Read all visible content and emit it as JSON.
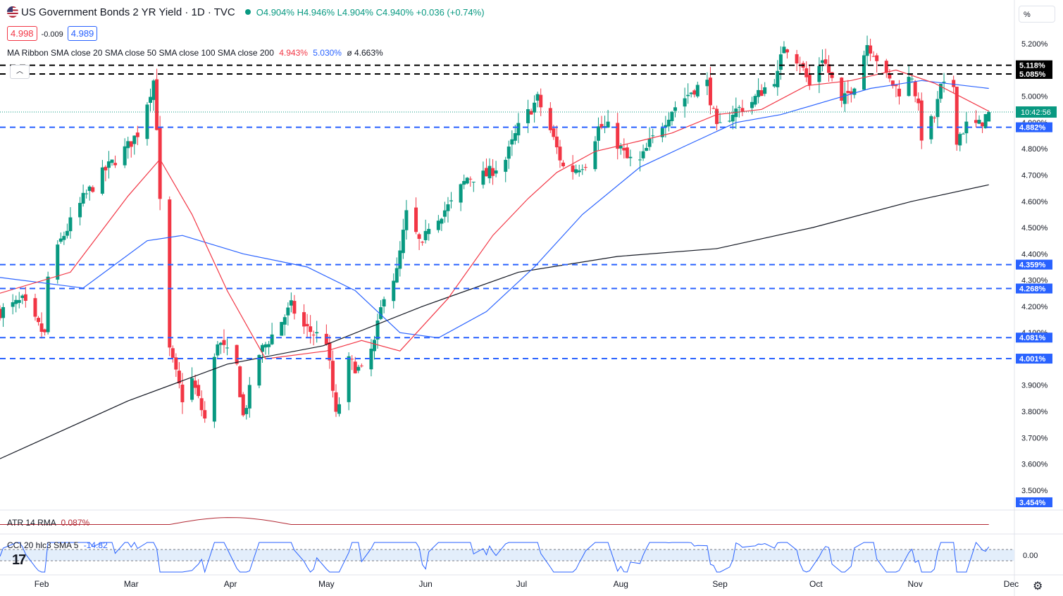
{
  "header": {
    "title": "US Government Bonds 2 YR Yield · 1D · TVC",
    "ohlc_text": "O4.904% H4.946% L4.904% C4.940% +0.036 (+0.74%)",
    "bid": "4.998",
    "spread": "-0.009",
    "ask": "4.989",
    "ma_label": "MA Ribbon SMA close 20 SMA close 50 SMA close 100 SMA close 200",
    "ma_val1": "4.943%",
    "ma_val2": "5.030%",
    "ma_val3": "ø 4.663%",
    "atr_label": "ATR 14 RMA",
    "atr_value": "0.087%",
    "cci_label": "CCI 20 hlc3 SMA 5",
    "cci_value": "-14.82",
    "cci_zero": "0.00",
    "pct_button": "%",
    "countdown": "10:42:56",
    "logo": "17"
  },
  "colors": {
    "up": "#089981",
    "down": "#f23645",
    "sma20": "#f23645",
    "sma50": "#2962ff",
    "sma200": "#131722",
    "support": "#2962ff",
    "resistance": "#000000"
  },
  "chart_data": {
    "type": "candlestick",
    "title": "US Government Bonds 2 YR Yield · 1D · TVC",
    "yaxis_ticks": [
      "5.200%",
      "5.100%",
      "5.000%",
      "4.900%",
      "4.800%",
      "4.700%",
      "4.600%",
      "4.500%",
      "4.400%",
      "4.300%",
      "4.200%",
      "4.100%",
      "4.000%",
      "3.900%",
      "3.800%",
      "3.700%",
      "3.600%",
      "3.500%"
    ],
    "ylim": [
      3.47,
      5.27
    ],
    "xaxis_ticks": [
      "Feb",
      "Mar",
      "Apr",
      "May",
      "Jun",
      "Jul",
      "Aug",
      "Sep",
      "Oct",
      "Nov",
      "Dec"
    ],
    "x_range": [
      "2023-01-19",
      "2023-12-02"
    ],
    "last_close": 4.94,
    "horizontal_levels": [
      {
        "label": "5.118%",
        "value": 5.118,
        "color": "#000000",
        "style": "dashed"
      },
      {
        "label": "5.085%",
        "value": 5.085,
        "color": "#000000",
        "style": "dashed"
      },
      {
        "label": "4.882%",
        "value": 4.882,
        "color": "#2962ff",
        "style": "dashed"
      },
      {
        "label": "4.359%",
        "value": 4.359,
        "color": "#2962ff",
        "style": "dashed"
      },
      {
        "label": "4.268%",
        "value": 4.268,
        "color": "#2962ff",
        "style": "dashed"
      },
      {
        "label": "4.081%",
        "value": 4.081,
        "color": "#2962ff",
        "style": "dashed"
      },
      {
        "label": "4.001%",
        "value": 4.001,
        "color": "#2962ff",
        "style": "dashed"
      },
      {
        "label": "3.454%",
        "value": 3.454,
        "color": "#2962ff",
        "style": "label"
      }
    ],
    "anchors": [
      [
        "2023-01-19",
        4.18
      ],
      [
        "2023-01-26",
        4.22
      ],
      [
        "2023-01-30",
        4.14
      ],
      [
        "2023-02-02",
        4.09
      ],
      [
        "2023-02-03",
        4.31
      ],
      [
        "2023-02-07",
        4.45
      ],
      [
        "2023-02-14",
        4.61
      ],
      [
        "2023-02-21",
        4.72
      ],
      [
        "2023-02-28",
        4.81
      ],
      [
        "2023-03-03",
        4.86
      ],
      [
        "2023-03-08",
        5.06
      ],
      [
        "2023-03-09",
        4.89
      ],
      [
        "2023-03-10",
        4.59
      ],
      [
        "2023-03-13",
        4.03
      ],
      [
        "2023-03-17",
        3.85
      ],
      [
        "2023-03-20",
        3.92
      ],
      [
        "2023-03-24",
        3.77
      ],
      [
        "2023-03-28",
        4.07
      ],
      [
        "2023-04-03",
        3.97
      ],
      [
        "2023-04-05",
        3.78
      ],
      [
        "2023-04-10",
        4.02
      ],
      [
        "2023-04-14",
        4.09
      ],
      [
        "2023-04-20",
        4.2
      ],
      [
        "2023-04-24",
        4.12
      ],
      [
        "2023-05-01",
        4.07
      ],
      [
        "2023-05-04",
        3.78
      ],
      [
        "2023-05-08",
        3.99
      ],
      [
        "2023-05-12",
        3.95
      ],
      [
        "2023-05-16",
        4.06
      ],
      [
        "2023-05-19",
        4.25
      ],
      [
        "2023-05-23",
        4.33
      ],
      [
        "2023-05-26",
        4.55
      ],
      [
        "2023-05-31",
        4.42
      ],
      [
        "2023-06-02",
        4.51
      ],
      [
        "2023-06-09",
        4.59
      ],
      [
        "2023-06-14",
        4.69
      ],
      [
        "2023-06-20",
        4.7
      ],
      [
        "2023-06-26",
        4.76
      ],
      [
        "2023-06-30",
        4.88
      ],
      [
        "2023-07-06",
        4.99
      ],
      [
        "2023-07-10",
        4.87
      ],
      [
        "2023-07-14",
        4.73
      ],
      [
        "2023-07-17",
        4.72
      ],
      [
        "2023-07-21",
        4.75
      ],
      [
        "2023-07-25",
        4.88
      ],
      [
        "2023-07-28",
        4.88
      ],
      [
        "2023-08-03",
        4.76
      ],
      [
        "2023-08-07",
        4.75
      ],
      [
        "2023-08-10",
        4.82
      ],
      [
        "2023-08-17",
        4.95
      ],
      [
        "2023-08-24",
        5.03
      ],
      [
        "2023-08-28",
        5.05
      ],
      [
        "2023-08-31",
        4.87
      ],
      [
        "2023-09-05",
        4.94
      ],
      [
        "2023-09-11",
        4.98
      ],
      [
        "2023-09-14",
        5.02
      ],
      [
        "2023-09-19",
        5.08
      ],
      [
        "2023-09-21",
        5.2
      ],
      [
        "2023-09-26",
        5.13
      ],
      [
        "2023-09-29",
        5.04
      ],
      [
        "2023-10-03",
        5.15
      ],
      [
        "2023-10-09",
        4.97
      ],
      [
        "2023-10-13",
        5.05
      ],
      [
        "2023-10-17",
        5.2
      ],
      [
        "2023-10-19",
        5.17
      ],
      [
        "2023-10-23",
        5.07
      ],
      [
        "2023-10-27",
        5.02
      ],
      [
        "2023-10-31",
        5.08
      ],
      [
        "2023-11-02",
        4.95
      ],
      [
        "2023-11-03",
        4.85
      ],
      [
        "2023-11-07",
        4.92
      ],
      [
        "2023-11-09",
        5.03
      ],
      [
        "2023-11-13",
        5.04
      ],
      [
        "2023-11-14",
        4.84
      ],
      [
        "2023-11-17",
        4.89
      ],
      [
        "2023-11-21",
        4.89
      ],
      [
        "2023-11-24",
        4.94
      ]
    ],
    "moving_averages": {
      "sma20": [
        [
          "2023-01-19",
          4.25
        ],
        [
          "2023-02-10",
          4.33
        ],
        [
          "2023-02-28",
          4.62
        ],
        [
          "2023-03-10",
          4.76
        ],
        [
          "2023-03-20",
          4.55
        ],
        [
          "2023-03-31",
          4.26
        ],
        [
          "2023-04-12",
          4.0
        ],
        [
          "2023-05-01",
          4.03
        ],
        [
          "2023-05-12",
          4.07
        ],
        [
          "2023-05-24",
          4.03
        ],
        [
          "2023-06-08",
          4.23
        ],
        [
          "2023-06-22",
          4.47
        ],
        [
          "2023-07-03",
          4.61
        ],
        [
          "2023-07-12",
          4.71
        ],
        [
          "2023-07-24",
          4.79
        ],
        [
          "2023-08-07",
          4.83
        ],
        [
          "2023-08-17",
          4.86
        ],
        [
          "2023-08-31",
          4.93
        ],
        [
          "2023-09-14",
          4.95
        ],
        [
          "2023-09-28",
          5.04
        ],
        [
          "2023-10-12",
          5.06
        ],
        [
          "2023-10-26",
          5.1
        ],
        [
          "2023-11-07",
          5.05
        ],
        [
          "2023-11-24",
          4.943
        ]
      ],
      "sma50": [
        [
          "2023-01-19",
          4.31
        ],
        [
          "2023-02-14",
          4.27
        ],
        [
          "2023-03-06",
          4.45
        ],
        [
          "2023-03-17",
          4.47
        ],
        [
          "2023-04-05",
          4.4
        ],
        [
          "2023-04-25",
          4.35
        ],
        [
          "2023-05-10",
          4.26
        ],
        [
          "2023-05-24",
          4.1
        ],
        [
          "2023-06-05",
          4.08
        ],
        [
          "2023-06-20",
          4.18
        ],
        [
          "2023-07-05",
          4.35
        ],
        [
          "2023-07-20",
          4.55
        ],
        [
          "2023-08-07",
          4.73
        ],
        [
          "2023-08-21",
          4.81
        ],
        [
          "2023-09-06",
          4.9
        ],
        [
          "2023-09-20",
          4.93
        ],
        [
          "2023-10-04",
          4.98
        ],
        [
          "2023-10-18",
          5.03
        ],
        [
          "2023-11-03",
          5.06
        ],
        [
          "2023-11-24",
          5.03
        ]
      ],
      "sma200": [
        [
          "2023-01-19",
          3.62
        ],
        [
          "2023-02-28",
          3.84
        ],
        [
          "2023-03-31",
          3.98
        ],
        [
          "2023-04-30",
          4.05
        ],
        [
          "2023-05-31",
          4.2
        ],
        [
          "2023-06-30",
          4.33
        ],
        [
          "2023-07-31",
          4.39
        ],
        [
          "2023-08-31",
          4.42
        ],
        [
          "2023-09-30",
          4.5
        ],
        [
          "2023-10-31",
          4.6
        ],
        [
          "2023-11-24",
          4.663
        ]
      ]
    },
    "atr": {
      "label": "ATR 14 RMA",
      "value": 0.087
    },
    "cci": {
      "label": "CCI 20 hlc3 SMA 5",
      "value": -14.82,
      "zero_label": "0.00"
    }
  }
}
